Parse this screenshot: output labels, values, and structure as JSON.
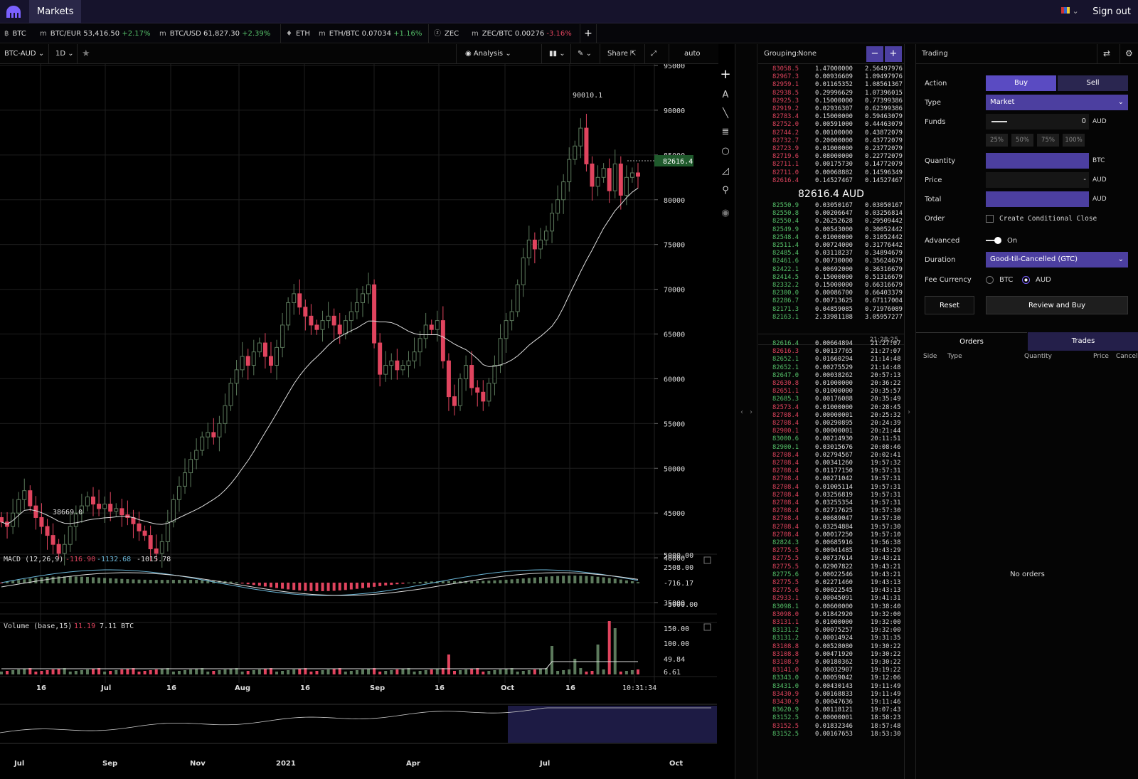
{
  "topbar": {
    "markets": "Markets",
    "signout": "Sign out"
  },
  "tickers": [
    {
      "icon": "฿",
      "pair": "BTC",
      "price": "",
      "change": "",
      "dir": ""
    },
    {
      "icon": "m",
      "pair": "BTC/EUR",
      "price": "53,416.50",
      "change": "+2.17%",
      "dir": "pos"
    },
    {
      "icon": "m",
      "pair": "BTC/USD",
      "price": "61,827.30",
      "change": "+2.39%",
      "dir": "pos"
    },
    {
      "icon": "♦",
      "pair": "ETH",
      "price": "",
      "change": "",
      "dir": ""
    },
    {
      "icon": "m",
      "pair": "ETH/BTC",
      "price": "0.07034",
      "change": "+1.16%",
      "dir": "pos"
    },
    {
      "icon": "ⓩ",
      "pair": "ZEC",
      "price": "",
      "change": "",
      "dir": ""
    },
    {
      "icon": "m",
      "pair": "ZEC/BTC",
      "price": "0.00276",
      "change": "-3.16%",
      "dir": "neg"
    }
  ],
  "toolbar": {
    "symbol": "BTC-AUD",
    "interval": "1D",
    "analysis": "Analysis",
    "share": "Share",
    "auto": "auto"
  },
  "chart": {
    "price_ticks": [
      "95000",
      "90000",
      "85000",
      "80000",
      "75000",
      "70000",
      "65000",
      "60000",
      "55000",
      "50000",
      "45000",
      "40000",
      "35000"
    ],
    "high_label": "90010.1",
    "low_label": "38669.0",
    "last_price": "82616.4",
    "macd": {
      "label": "MACD (12,26,9)",
      "v1": "-116.90",
      "v2": "-1132.68",
      "v3": "-1015.78",
      "ticks": [
        "5000.00",
        "2508.00",
        "-716.17",
        "-5000.00"
      ]
    },
    "volume": {
      "label": "Volume (base,15)",
      "v1": "11.19",
      "v2": "7.11 BTC",
      "ticks": [
        "150.00",
        "100.00",
        "49.84",
        "6.61"
      ]
    },
    "x_ticks": [
      "16",
      "Jul",
      "16",
      "Aug",
      "16",
      "Sep",
      "16",
      "Oct",
      "16"
    ],
    "time_label": "10:31:34",
    "nav_ticks": [
      "Jul",
      "Sep",
      "Nov",
      "2021",
      "Apr",
      "Jul",
      "Oct"
    ]
  },
  "chart_data": {
    "type": "candlestick",
    "x_range": [
      "2021-06-05",
      "2021-10-22"
    ],
    "ylim": [
      35000,
      95000
    ],
    "closes": [
      44000,
      43500,
      45000,
      46500,
      47500,
      45800,
      44500,
      43500,
      42500,
      41500,
      40500,
      41500,
      43500,
      45000,
      45800,
      46800,
      46000,
      45500,
      46000,
      45200,
      45500,
      44800,
      44500,
      43800,
      43000,
      42500,
      41000,
      40500,
      41800,
      44000,
      46500,
      48000,
      49500,
      51000,
      52000,
      53500,
      54000,
      53500,
      55000,
      57000,
      59500,
      61000,
      62500,
      61500,
      63000,
      64000,
      62500,
      61500,
      63500,
      66000,
      68500,
      69500,
      68000,
      67000,
      66000,
      65500,
      66500,
      67000,
      66000,
      65000,
      66500,
      67500,
      68500,
      69500,
      70500,
      64000,
      60500,
      61500,
      62000,
      61000,
      61500,
      62000,
      63000,
      64500,
      66000,
      65500,
      66500,
      62000,
      58000,
      57000,
      60000,
      61500,
      59000,
      58500,
      57500,
      59500,
      61500,
      64500,
      66500,
      67500,
      70500,
      73500,
      75500,
      74500,
      75500,
      76500,
      78500,
      80000,
      82000,
      84500,
      86000,
      88000,
      84000,
      81500,
      82500,
      83500,
      81000,
      84000,
      80500,
      82500,
      83000,
      82616
    ]
  },
  "orderbook": {
    "grouping_label": "Grouping:",
    "grouping_value": "None",
    "asks": [
      [
        "83058.5",
        "1.47000000",
        "2.56497976"
      ],
      [
        "82967.3",
        "0.00936609",
        "1.09497976"
      ],
      [
        "82959.1",
        "0.01165352",
        "1.08561367"
      ],
      [
        "82938.5",
        "0.29996629",
        "1.07396015"
      ],
      [
        "82925.3",
        "0.15000000",
        "0.77399386"
      ],
      [
        "82919.2",
        "0.02936307",
        "0.62399386"
      ],
      [
        "82783.4",
        "0.15000000",
        "0.59463079"
      ],
      [
        "82752.0",
        "0.00591000",
        "0.44463079"
      ],
      [
        "82744.2",
        "0.00100000",
        "0.43872079"
      ],
      [
        "82732.7",
        "0.20000000",
        "0.43772079"
      ],
      [
        "82723.9",
        "0.01000000",
        "0.23772079"
      ],
      [
        "82719.6",
        "0.08000000",
        "0.22772079"
      ],
      [
        "82711.1",
        "0.00175730",
        "0.14772079"
      ],
      [
        "82711.0",
        "0.00068882",
        "0.14596349"
      ],
      [
        "82616.4",
        "0.14527467",
        "0.14527467"
      ]
    ],
    "spread": "82616.4 AUD",
    "bids": [
      [
        "82550.9",
        "0.03050167",
        "0.03050167"
      ],
      [
        "82550.8",
        "0.00206647",
        "0.03256814"
      ],
      [
        "82550.4",
        "0.26252628",
        "0.29509442"
      ],
      [
        "82549.9",
        "0.00543000",
        "0.30052442"
      ],
      [
        "82548.4",
        "0.01000000",
        "0.31052442"
      ],
      [
        "82511.4",
        "0.00724000",
        "0.31776442"
      ],
      [
        "82485.4",
        "0.03118237",
        "0.34894679"
      ],
      [
        "82461.6",
        "0.00730000",
        "0.35624679"
      ],
      [
        "82422.1",
        "0.00692000",
        "0.36316679"
      ],
      [
        "82414.5",
        "0.15000000",
        "0.51316679"
      ],
      [
        "82332.2",
        "0.15000000",
        "0.66316679"
      ],
      [
        "82300.0",
        "0.00086700",
        "0.66403379"
      ],
      [
        "82286.7",
        "0.00713625",
        "0.67117004"
      ],
      [
        "82171.3",
        "0.04859085",
        "0.71976089"
      ],
      [
        "82163.1",
        "2.33981188",
        "3.05957277"
      ]
    ],
    "trade_time": "21:28:25",
    "trades": [
      [
        "82616.4",
        "0.00664894",
        "21:27:07",
        "b"
      ],
      [
        "82616.3",
        "0.00137765",
        "21:27:07",
        "a"
      ],
      [
        "82652.1",
        "0.01660294",
        "21:14:48",
        "b"
      ],
      [
        "82652.1",
        "0.00275529",
        "21:14:48",
        "b"
      ],
      [
        "82647.0",
        "0.00038262",
        "20:57:13",
        "b"
      ],
      [
        "82630.8",
        "0.01000000",
        "20:36:22",
        "a"
      ],
      [
        "82651.1",
        "0.01000000",
        "20:35:57",
        "a"
      ],
      [
        "82685.3",
        "0.00176088",
        "20:35:49",
        "b"
      ],
      [
        "82573.4",
        "0.01000000",
        "20:28:45",
        "a"
      ],
      [
        "82708.4",
        "0.00000001",
        "20:25:32",
        "a"
      ],
      [
        "82708.4",
        "0.00290895",
        "20:24:39",
        "a"
      ],
      [
        "82900.1",
        "0.00000001",
        "20:21:44",
        "a"
      ],
      [
        "83000.6",
        "0.00214930",
        "20:11:51",
        "b"
      ],
      [
        "82900.1",
        "0.03015676",
        "20:08:46",
        "b"
      ],
      [
        "82708.4",
        "0.02794567",
        "20:02:41",
        "a"
      ],
      [
        "82708.4",
        "0.00341260",
        "19:57:32",
        "a"
      ],
      [
        "82708.4",
        "0.01177150",
        "19:57:31",
        "a"
      ],
      [
        "82708.4",
        "0.00271042",
        "19:57:31",
        "a"
      ],
      [
        "82708.4",
        "0.01005114",
        "19:57:31",
        "a"
      ],
      [
        "82708.4",
        "0.03256819",
        "19:57:31",
        "a"
      ],
      [
        "82708.4",
        "0.03255354",
        "19:57:31",
        "a"
      ],
      [
        "82708.4",
        "0.02717625",
        "19:57:30",
        "a"
      ],
      [
        "82708.4",
        "0.00689047",
        "19:57:30",
        "a"
      ],
      [
        "82708.4",
        "0.03254884",
        "19:57:30",
        "a"
      ],
      [
        "82708.4",
        "0.00017250",
        "19:57:10",
        "a"
      ],
      [
        "82824.3",
        "0.00685916",
        "19:56:38",
        "b"
      ],
      [
        "82775.5",
        "0.00941485",
        "19:43:29",
        "a"
      ],
      [
        "82775.5",
        "0.00737614",
        "19:43:21",
        "a"
      ],
      [
        "82775.5",
        "0.02907822",
        "19:43:21",
        "a"
      ],
      [
        "82775.6",
        "0.00022546",
        "19:43:21",
        "b"
      ],
      [
        "82775.5",
        "0.02271460",
        "19:43:13",
        "a"
      ],
      [
        "82775.6",
        "0.00022545",
        "19:43:13",
        "a"
      ],
      [
        "82933.1",
        "0.00045091",
        "19:41:31",
        "a"
      ],
      [
        "83098.1",
        "0.00600000",
        "19:38:40",
        "b"
      ],
      [
        "83098.0",
        "0.01842920",
        "19:32:00",
        "a"
      ],
      [
        "83131.1",
        "0.01000000",
        "19:32:00",
        "a"
      ],
      [
        "83131.2",
        "0.00075257",
        "19:32:00",
        "b"
      ],
      [
        "83131.2",
        "0.00014924",
        "19:31:35",
        "b"
      ],
      [
        "83108.8",
        "0.00528080",
        "19:30:22",
        "a"
      ],
      [
        "83108.8",
        "0.00471920",
        "19:30:22",
        "a"
      ],
      [
        "83108.9",
        "0.00180362",
        "19:30:22",
        "a"
      ],
      [
        "83141.0",
        "0.00032907",
        "19:19:22",
        "a"
      ],
      [
        "83343.0",
        "0.00059042",
        "19:12:06",
        "b"
      ],
      [
        "83431.0",
        "0.00430143",
        "19:11:49",
        "b"
      ],
      [
        "83430.9",
        "0.00168833",
        "19:11:49",
        "a"
      ],
      [
        "83430.9",
        "0.00047636",
        "19:11:46",
        "a"
      ],
      [
        "83620.9",
        "0.00118121",
        "19:07:43",
        "b"
      ],
      [
        "83152.5",
        "0.00000001",
        "18:58:23",
        "b"
      ],
      [
        "83152.5",
        "0.01832346",
        "18:57:48",
        "a"
      ],
      [
        "83152.5",
        "0.00167653",
        "18:53:30",
        "b"
      ]
    ]
  },
  "trading": {
    "title": "Trading",
    "action_label": "Action",
    "buy": "Buy",
    "sell": "Sell",
    "type_label": "Type",
    "type_value": "Market",
    "funds_label": "Funds",
    "funds_value": "0",
    "funds_unit": "AUD",
    "pcts": [
      "25%",
      "50%",
      "75%",
      "100%"
    ],
    "quantity_label": "Quantity",
    "quantity_unit": "BTC",
    "price_label": "Price",
    "price_value": "-",
    "price_unit": "AUD",
    "total_label": "Total",
    "total_unit": "AUD",
    "order_label": "Order",
    "conditional_close": "Create Conditional Close",
    "advanced_label": "Advanced",
    "advanced_value": "On",
    "duration_label": "Duration",
    "duration_value": "Good-til-Cancelled (GTC)",
    "fee_label": "Fee Currency",
    "fee_btc": "BTC",
    "fee_aud": "AUD",
    "reset": "Reset",
    "review": "Review and Buy",
    "tabs": [
      "Orders",
      "Trades"
    ],
    "cols": [
      "Side",
      "Type",
      "Quantity",
      "Price",
      "Cancel"
    ],
    "no_orders": "No orders"
  }
}
